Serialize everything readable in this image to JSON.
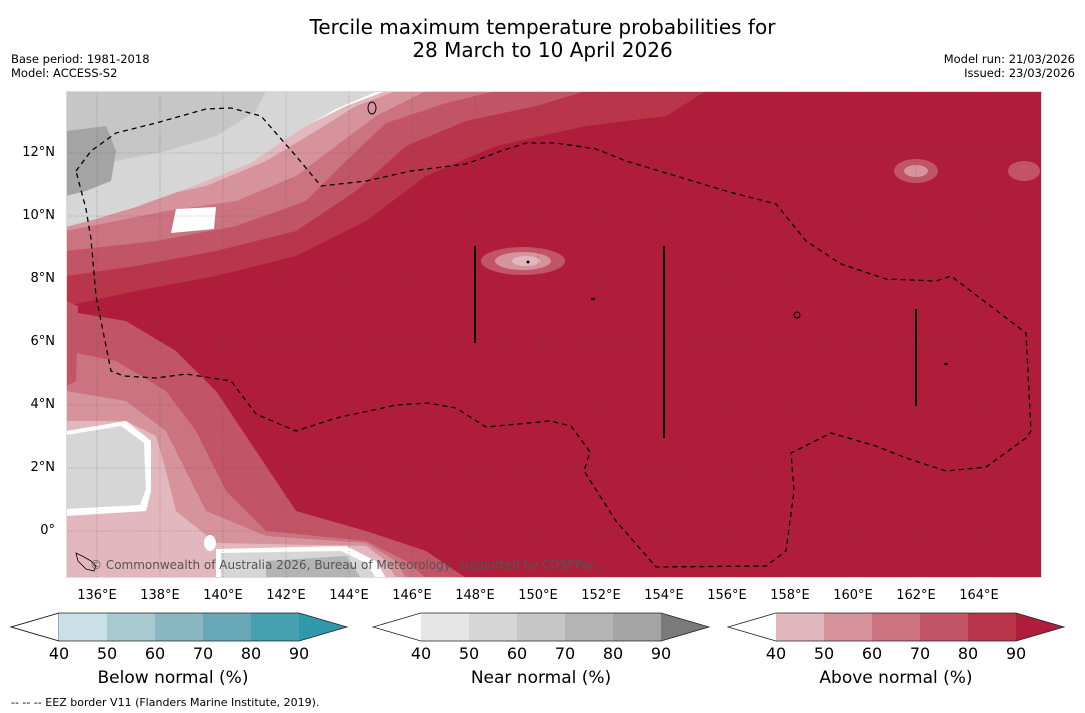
{
  "header": {
    "title_line1": "Tercile maximum temperature probabilities for",
    "title_line2": "28 March to 10 April 2026",
    "base_period": "Base period: 1981-2018",
    "model": "Model: ACCESS-S2",
    "model_run": "Model run: 21/03/2026",
    "issued": "Issued: 23/03/2026"
  },
  "map": {
    "lat_labels": [
      "12°N",
      "10°N",
      "8°N",
      "6°N",
      "4°N",
      "2°N",
      "0°"
    ],
    "lon_labels": [
      "136°E",
      "138°E",
      "140°E",
      "142°E",
      "144°E",
      "146°E",
      "148°E",
      "150°E",
      "152°E",
      "154°E",
      "156°E",
      "158°E",
      "160°E",
      "162°E",
      "164°E"
    ],
    "copyright": "© Commonwealth of Australia 2026, Bureau of Meteorology, supported by COSPPac"
  },
  "colorbars": [
    {
      "title": "Below normal (%)",
      "ticks": [
        "40",
        "50",
        "60",
        "70",
        "80",
        "90"
      ],
      "colors": [
        "#ffffff",
        "#c8e0e6",
        "#a8c9d0",
        "#88b6c1",
        "#68a8b6",
        "#47a0b0",
        "#2f98aa"
      ]
    },
    {
      "title": "Near normal (%)",
      "ticks": [
        "40",
        "50",
        "60",
        "70",
        "80",
        "90"
      ],
      "colors": [
        "#ffffff",
        "#e6e6e6",
        "#d6d6d6",
        "#c6c6c6",
        "#b4b4b4",
        "#a4a4a4",
        "#7a7a7a"
      ]
    },
    {
      "title": "Above normal (%)",
      "ticks": [
        "40",
        "50",
        "60",
        "70",
        "80",
        "90"
      ],
      "colors": [
        "#ffffff",
        "#e2b8be",
        "#d6939c",
        "#cb737f",
        "#c25565",
        "#b93549",
        "#b01d3a"
      ]
    }
  ],
  "footer": {
    "legend_text": "--  --  -- EEZ border V11 (Flanders Marine Institute, 2019)."
  }
}
